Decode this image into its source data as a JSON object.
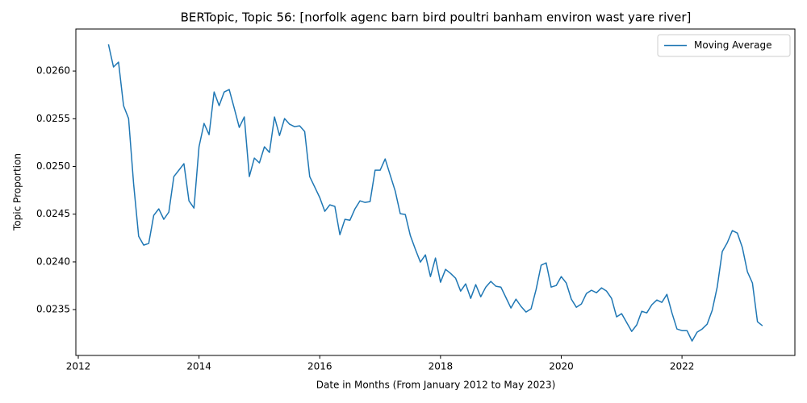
{
  "chart_data": {
    "type": "line",
    "title": "BERTopic, Topic 56: [norfolk agenc barn bird poultri banham environ wast yare river]",
    "xlabel": "Date in Months (From January 2012 to May 2023)",
    "ylabel": "Topic Proportion",
    "x": [
      "2012-07",
      "2012-08",
      "2012-09",
      "2012-10",
      "2012-11",
      "2012-12",
      "2013-01",
      "2013-02",
      "2013-03",
      "2013-04",
      "2013-05",
      "2013-06",
      "2013-07",
      "2013-08",
      "2013-09",
      "2013-10",
      "2013-11",
      "2013-12",
      "2014-01",
      "2014-02",
      "2014-03",
      "2014-04",
      "2014-05",
      "2014-06",
      "2014-07",
      "2014-08",
      "2014-09",
      "2014-10",
      "2014-11",
      "2014-12",
      "2015-01",
      "2015-02",
      "2015-03",
      "2015-04",
      "2015-05",
      "2015-06",
      "2015-07",
      "2015-08",
      "2015-09",
      "2015-10",
      "2015-11",
      "2015-12",
      "2016-01",
      "2016-02",
      "2016-03",
      "2016-04",
      "2016-05",
      "2016-06",
      "2016-07",
      "2016-08",
      "2016-09",
      "2016-10",
      "2016-11",
      "2016-12",
      "2017-01",
      "2017-02",
      "2017-03",
      "2017-04",
      "2017-05",
      "2017-06",
      "2017-07",
      "2017-08",
      "2017-09",
      "2017-10",
      "2017-11",
      "2017-12",
      "2018-01",
      "2018-02",
      "2018-03",
      "2018-04",
      "2018-05",
      "2018-06",
      "2018-07",
      "2018-08",
      "2018-09",
      "2018-10",
      "2018-11",
      "2018-12",
      "2019-01",
      "2019-02",
      "2019-03",
      "2019-04",
      "2019-05",
      "2019-06",
      "2019-07",
      "2019-08",
      "2019-09",
      "2019-10",
      "2019-11",
      "2019-12",
      "2020-01",
      "2020-02",
      "2020-03",
      "2020-04",
      "2020-05",
      "2020-06",
      "2020-07",
      "2020-08",
      "2020-09",
      "2020-10",
      "2020-11",
      "2020-12",
      "2021-01",
      "2021-02",
      "2021-03",
      "2021-04",
      "2021-05",
      "2021-06",
      "2021-07",
      "2021-08",
      "2021-09",
      "2021-10",
      "2021-11",
      "2021-12",
      "2022-01",
      "2022-02",
      "2022-03",
      "2022-04",
      "2022-05",
      "2022-06",
      "2022-07",
      "2022-08",
      "2022-09",
      "2022-10",
      "2022-11",
      "2022-12",
      "2023-01",
      "2023-02",
      "2023-03",
      "2023-04",
      "2023-05"
    ],
    "series": [
      {
        "name": "Moving Average",
        "color": "#1f77b4",
        "values": [
          0.026279,
          0.026042,
          0.026093,
          0.025637,
          0.025502,
          0.024818,
          0.024269,
          0.024176,
          0.024193,
          0.024488,
          0.024556,
          0.024446,
          0.024522,
          0.024894,
          0.024961,
          0.025029,
          0.02464,
          0.024564,
          0.025206,
          0.025451,
          0.025333,
          0.02578,
          0.025637,
          0.02578,
          0.025806,
          0.025611,
          0.025409,
          0.025519,
          0.024894,
          0.025088,
          0.025037,
          0.025206,
          0.025147,
          0.025519,
          0.025324,
          0.025502,
          0.025443,
          0.025417,
          0.025426,
          0.025367,
          0.024894,
          0.024784,
          0.024674,
          0.02453,
          0.024598,
          0.024581,
          0.024285,
          0.024446,
          0.024437,
          0.024556,
          0.02464,
          0.024623,
          0.024632,
          0.024961,
          0.024961,
          0.025079,
          0.02491,
          0.024742,
          0.024505,
          0.024497,
          0.024277,
          0.024133,
          0.023998,
          0.024074,
          0.023846,
          0.024041,
          0.023787,
          0.023922,
          0.02388,
          0.023829,
          0.023694,
          0.02377,
          0.023618,
          0.023762,
          0.023635,
          0.023736,
          0.023796,
          0.023745,
          0.023736,
          0.023627,
          0.023517,
          0.02361,
          0.023534,
          0.023475,
          0.023508,
          0.023711,
          0.023965,
          0.02399,
          0.023736,
          0.023753,
          0.023846,
          0.023779,
          0.02361,
          0.023525,
          0.023559,
          0.023669,
          0.023703,
          0.023677,
          0.023728,
          0.023694,
          0.023618,
          0.023424,
          0.023458,
          0.023365,
          0.023272,
          0.02334,
          0.023483,
          0.023466,
          0.023551,
          0.023601,
          0.023576,
          0.02366,
          0.023466,
          0.023297,
          0.02328,
          0.02328,
          0.023171,
          0.023264,
          0.023297,
          0.023348,
          0.023492,
          0.023736,
          0.024108,
          0.024201,
          0.024328,
          0.024302,
          0.02415,
          0.023897,
          0.023779,
          0.023373,
          0.023331
        ]
      }
    ],
    "xlim": [
      2011.96,
      2023.87
    ],
    "xticks": [
      2012,
      2014,
      2016,
      2018,
      2020,
      2022
    ],
    "ylim": [
      0.02302,
      0.02644
    ],
    "yticks": [
      0.0235,
      {
        "value": 0.024,
        "label": "0.0240"
      },
      0.0245,
      {
        "value": 0.025,
        "label": "0.0250"
      },
      0.0255,
      {
        "value": 0.026,
        "label": "0.0260"
      }
    ],
    "legend": "upper right"
  }
}
